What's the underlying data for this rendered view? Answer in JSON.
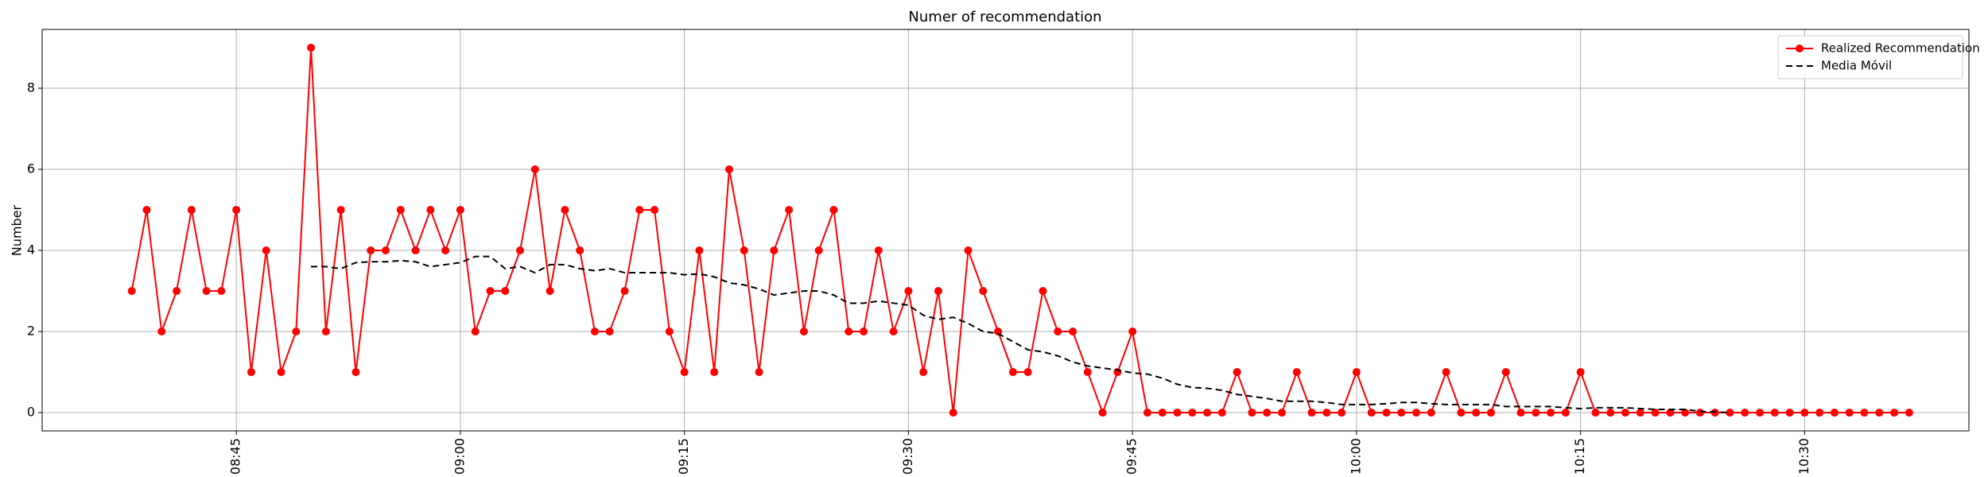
{
  "chart_data": {
    "type": "line",
    "title": "Numer of recommendation",
    "y_label": "Number",
    "x": [
      "08:38",
      "08:39",
      "08:40",
      "08:41",
      "08:42",
      "08:43",
      "08:44",
      "08:45",
      "08:46",
      "08:47",
      "08:48",
      "08:49",
      "08:50",
      "08:51",
      "08:52",
      "08:53",
      "08:54",
      "08:55",
      "08:56",
      "08:57",
      "08:58",
      "08:59",
      "09:00",
      "09:01",
      "09:02",
      "09:03",
      "09:04",
      "09:05",
      "09:06",
      "09:07",
      "09:08",
      "09:09",
      "09:10",
      "09:11",
      "09:12",
      "09:13",
      "09:14",
      "09:15",
      "09:16",
      "09:17",
      "09:18",
      "09:19",
      "09:20",
      "09:21",
      "09:22",
      "09:23",
      "09:24",
      "09:25",
      "09:26",
      "09:27",
      "09:28",
      "09:29",
      "09:30",
      "09:31",
      "09:32",
      "09:33",
      "09:34",
      "09:35",
      "09:36",
      "09:37",
      "09:38",
      "09:39",
      "09:40",
      "09:41",
      "09:42",
      "09:43",
      "09:44",
      "09:45",
      "09:46",
      "09:47",
      "09:48",
      "09:49",
      "09:50",
      "09:51",
      "09:52",
      "09:53",
      "09:54",
      "09:55",
      "09:56",
      "09:57",
      "09:58",
      "09:59",
      "10:00",
      "10:01",
      "10:02",
      "10:03",
      "10:04",
      "10:05",
      "10:06",
      "10:07",
      "10:08",
      "10:09",
      "10:10",
      "10:11",
      "10:12",
      "10:13",
      "10:14",
      "10:15",
      "10:16",
      "10:17",
      "10:18",
      "10:19",
      "10:20",
      "10:21",
      "10:22",
      "10:23",
      "10:24",
      "10:25",
      "10:26",
      "10:27",
      "10:28",
      "10:29",
      "10:30",
      "10:31",
      "10:32",
      "10:33",
      "10:34",
      "10:35",
      "10:36",
      "10:37"
    ],
    "series": [
      {
        "name": "Realized Recommendation",
        "color": "#ff0000",
        "style": "solid",
        "marker": true,
        "values": [
          3,
          5,
          2,
          3,
          5,
          3,
          3,
          5,
          1,
          4,
          1,
          2,
          9,
          2,
          5,
          1,
          4,
          4,
          5,
          4,
          5,
          4,
          5,
          2,
          3,
          3,
          4,
          6,
          3,
          5,
          4,
          2,
          2,
          3,
          5,
          5,
          2,
          1,
          4,
          1,
          6,
          4,
          1,
          4,
          5,
          2,
          4,
          5,
          2,
          2,
          4,
          2,
          3,
          1,
          3,
          0,
          4,
          3,
          2,
          1,
          1,
          3,
          2,
          2,
          1,
          0,
          1,
          2,
          0,
          0,
          0,
          0,
          0,
          0,
          1,
          0,
          0,
          0,
          1,
          0,
          0,
          0,
          1,
          0,
          0,
          0,
          0,
          0,
          1,
          0,
          0,
          0,
          1,
          0,
          0,
          0,
          0,
          1,
          0,
          0,
          0,
          0,
          0,
          0,
          0,
          0,
          0,
          0,
          0,
          0,
          0,
          0,
          0,
          0,
          0,
          0,
          0,
          0,
          0,
          0
        ]
      },
      {
        "name": "Media Móvil",
        "color": "#000000",
        "style": "dashed",
        "marker": false,
        "values": [
          null,
          null,
          null,
          null,
          null,
          null,
          null,
          null,
          null,
          null,
          null,
          null,
          3.6,
          3.6,
          3.55,
          3.7,
          3.72,
          3.72,
          3.75,
          3.72,
          3.6,
          3.65,
          3.7,
          3.85,
          3.85,
          3.55,
          3.6,
          3.45,
          3.65,
          3.65,
          3.55,
          3.5,
          3.55,
          3.45,
          3.45,
          3.45,
          3.45,
          3.4,
          3.42,
          3.35,
          3.2,
          3.15,
          3.05,
          2.9,
          2.95,
          3.0,
          3.0,
          2.9,
          2.7,
          2.7,
          2.75,
          2.7,
          2.65,
          2.4,
          2.3,
          2.35,
          2.2,
          2.0,
          1.95,
          1.75,
          1.55,
          1.5,
          1.4,
          1.25,
          1.15,
          1.1,
          1.05,
          0.98,
          0.95,
          0.85,
          0.7,
          0.62,
          0.6,
          0.55,
          0.45,
          0.4,
          0.35,
          0.28,
          0.28,
          0.28,
          0.25,
          0.2,
          0.2,
          0.2,
          0.22,
          0.25,
          0.25,
          0.22,
          0.2,
          0.2,
          0.2,
          0.2,
          0.15,
          0.15,
          0.15,
          0.15,
          0.12,
          0.1,
          0.12,
          0.12,
          0.12,
          0.1,
          0.08,
          0.08,
          0.08,
          0.03,
          0.02,
          0.0,
          null,
          null,
          null,
          null,
          null,
          null,
          null,
          null,
          null,
          null,
          null,
          null
        ]
      }
    ],
    "xlim": [
      "08:32",
      "10:41"
    ],
    "xticks": [
      "08:45",
      "09:00",
      "09:15",
      "09:30",
      "09:45",
      "10:00",
      "10:15",
      "10:30"
    ],
    "ylim": [
      -0.45,
      9.45
    ],
    "yticks": [
      0,
      2,
      4,
      6,
      8
    ],
    "grid": true,
    "legend": "upper right"
  }
}
